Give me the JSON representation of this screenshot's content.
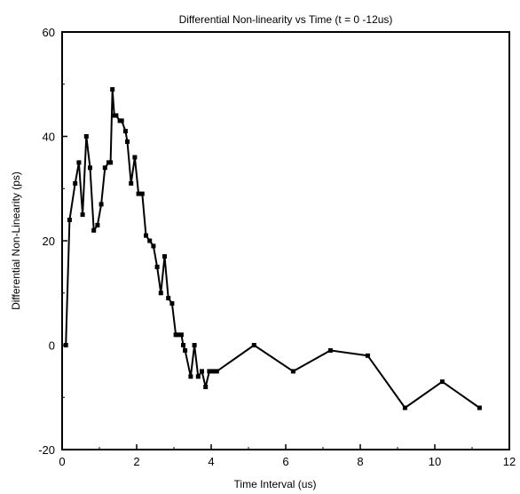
{
  "chart_data": {
    "type": "line",
    "title": "Differential Non-linearity vs Time (t = 0 -12us)",
    "xlabel": "Time Interval (us)",
    "ylabel": "Differential Non-Linearity (ps)",
    "xlim": [
      0,
      12
    ],
    "ylim": [
      -20,
      60
    ],
    "x_ticks": [
      0,
      2,
      4,
      6,
      8,
      10,
      12
    ],
    "y_ticks": [
      -20,
      0,
      20,
      40,
      60
    ],
    "grid": false,
    "legend": "none",
    "series": [
      {
        "color": "#000000",
        "marker": "square",
        "x": [
          0.1,
          0.2,
          0.35,
          0.45,
          0.55,
          0.65,
          0.75,
          0.85,
          0.95,
          1.05,
          1.15,
          1.25,
          1.3,
          1.35,
          1.4,
          1.45,
          1.55,
          1.6,
          1.7,
          1.75,
          1.85,
          1.95,
          2.05,
          2.15,
          2.25,
          2.35,
          2.45,
          2.55,
          2.65,
          2.75,
          2.85,
          2.95,
          3.05,
          3.1,
          3.2,
          3.25,
          3.3,
          3.45,
          3.55,
          3.65,
          3.75,
          3.85,
          3.95,
          4.05,
          4.15,
          5.15,
          6.2,
          7.2,
          8.2,
          9.2,
          10.2,
          11.2
        ],
        "y": [
          0,
          24,
          31,
          35,
          25,
          40,
          34,
          22,
          23,
          27,
          34,
          35,
          35,
          49,
          44,
          44,
          43,
          43,
          41,
          39,
          31,
          36,
          29,
          29,
          21,
          20,
          19,
          15,
          10,
          17,
          9,
          8,
          2,
          2,
          2,
          0,
          -1,
          -6,
          0,
          -6,
          -5,
          -8,
          -5,
          -5,
          -5,
          0,
          -5,
          -1,
          -2,
          -12,
          -7,
          -12
        ]
      }
    ]
  }
}
